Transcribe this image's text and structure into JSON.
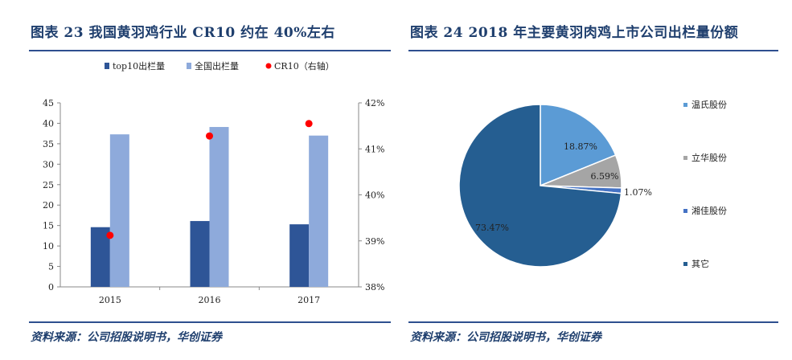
{
  "left": {
    "title": "图表 23   我国黄羽鸡行业 CR10 约在 40%左右",
    "source": "资料来源：公司招股说明书，华创证券",
    "chart_data": {
      "type": "bar",
      "categories": [
        "2015",
        "2016",
        "2017"
      ],
      "series": [
        {
          "name": "top10出栏量",
          "kind": "bar",
          "axis": "left",
          "color": "#2e5597",
          "values": [
            14.6,
            16.1,
            15.3
          ]
        },
        {
          "name": "全国出栏量",
          "kind": "bar",
          "axis": "left",
          "color": "#8eaadb",
          "values": [
            37.3,
            39.1,
            37.0
          ]
        },
        {
          "name": "CR10（右轴）",
          "kind": "scatter",
          "axis": "right",
          "color": "#ff0000",
          "values": [
            39.12,
            41.28,
            41.55
          ]
        }
      ],
      "ylim": [
        0,
        45
      ],
      "yticks": [
        "0",
        "5",
        "10",
        "15",
        "20",
        "25",
        "30",
        "35",
        "40",
        "45"
      ],
      "y2lim": [
        38,
        42
      ],
      "y2ticks": [
        "38%",
        "39%",
        "40%",
        "41%",
        "42%"
      ],
      "legend_position": "top"
    }
  },
  "right": {
    "title": "图表 24   2018 年主要黄羽肉鸡上市公司出栏量份额",
    "source": "资料来源：公司招股说明书，华创证券",
    "chart_data": {
      "type": "pie",
      "slices": [
        {
          "name": "温氏股份",
          "value": 18.87,
          "label": "18.87%",
          "color": "#5b9bd5"
        },
        {
          "name": "立华股份",
          "value": 6.59,
          "label": "6.59%",
          "color": "#a5a5a5"
        },
        {
          "name": "湘佳股份",
          "value": 1.07,
          "label": "1.07%",
          "color": "#4472c4"
        },
        {
          "name": "其它",
          "value": 73.47,
          "label": "73.47%",
          "color": "#255e91"
        }
      ],
      "legend_position": "right"
    }
  }
}
